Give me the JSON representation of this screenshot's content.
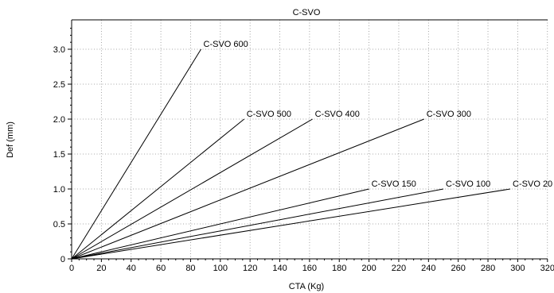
{
  "chart_data": {
    "type": "line",
    "title": "C-SVO",
    "xlabel": "CTA (Kg)",
    "ylabel": "Def (mm)",
    "xlim": [
      0,
      320
    ],
    "ylim": [
      0,
      3.4
    ],
    "x_ticks": [
      "0",
      "20",
      "40",
      "60",
      "80",
      "100",
      "120",
      "140",
      "160",
      "180",
      "200",
      "220",
      "240",
      "260",
      "280",
      "300",
      "320"
    ],
    "y_ticks": [
      "0",
      "0.5",
      "1.0",
      "1.5",
      "2.0",
      "2.5",
      "3.0"
    ],
    "grid": true,
    "series": [
      {
        "name": "C-SVO 600",
        "x": [
          0,
          87
        ],
        "y": [
          0,
          3.0
        ]
      },
      {
        "name": "C-SVO 500",
        "x": [
          0,
          116
        ],
        "y": [
          0,
          2.0
        ]
      },
      {
        "name": "C-SVO 400",
        "x": [
          0,
          162
        ],
        "y": [
          0,
          2.0
        ]
      },
      {
        "name": "C-SVO 300",
        "x": [
          0,
          237
        ],
        "y": [
          0,
          2.0
        ]
      },
      {
        "name": "C-SVO 150",
        "x": [
          0,
          200
        ],
        "y": [
          0,
          1.0
        ]
      },
      {
        "name": "C-SVO 100",
        "x": [
          0,
          250
        ],
        "y": [
          0,
          1.0
        ]
      },
      {
        "name": "C-SVO 20",
        "x": [
          0,
          295
        ],
        "y": [
          0,
          1.0
        ]
      }
    ]
  }
}
